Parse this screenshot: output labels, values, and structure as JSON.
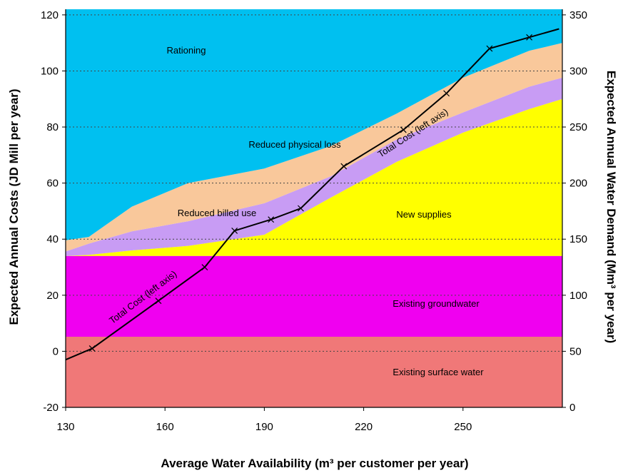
{
  "chart_data": {
    "type": "area",
    "xlabel": "Average Water Availability (m³ per customer per year)",
    "ylabel_left": "Expected Annual Costs (JD Mill per year)",
    "ylabel_right": "Expected Annual Water Demand (Mm³ per year)",
    "xlim": [
      130,
      280
    ],
    "ylim_left": [
      -20,
      122
    ],
    "ylim_right": [
      0,
      355
    ],
    "x_ticks": [
      130,
      160,
      190,
      220,
      250
    ],
    "y_ticks_left": [
      -20,
      0,
      20,
      40,
      60,
      80,
      100,
      120
    ],
    "y_ticks_right": [
      0,
      50,
      100,
      150,
      200,
      250,
      300,
      350
    ],
    "grid": "horizontal dotted",
    "stacked_regions": {
      "note_units": "right axis (Mm3 per year), cumulative upper boundaries",
      "x": [
        130,
        137,
        150,
        167,
        190,
        210,
        230,
        250,
        270,
        280
      ],
      "series": [
        {
          "name": "Existing surface water",
          "color": "#f07878",
          "top": [
            63,
            63,
            63,
            63,
            63,
            63,
            63,
            63,
            63,
            63
          ]
        },
        {
          "name": "Existing groundwater",
          "color": "#f000f0",
          "top": [
            135,
            135,
            135,
            135,
            135,
            135,
            135,
            135,
            135,
            135
          ]
        },
        {
          "name": "New supplies",
          "color": "#ffff00",
          "top": [
            135,
            136,
            140,
            144,
            154,
            187,
            219,
            245,
            266,
            275
          ]
        },
        {
          "name": "Reduced billed use",
          "color": "#c89cf4",
          "top": [
            139,
            146,
            157,
            166,
            182,
            206,
            239,
            263,
            286,
            294
          ]
        },
        {
          "name": "Reduced physical loss",
          "color": "#f9c89b",
          "top": [
            149,
            152,
            179,
            200,
            213,
            233,
            262,
            294,
            318,
            325
          ]
        },
        {
          "name": "Rationing",
          "color": "#00c0f0",
          "top": [
            355,
            355,
            355,
            355,
            355,
            355,
            355,
            355,
            355,
            355
          ]
        }
      ]
    },
    "total_cost": {
      "name": "Total Cost (left axis)",
      "axis": "left",
      "x": [
        130,
        138,
        158,
        172,
        181,
        192,
        201,
        214,
        232,
        245,
        258,
        270,
        279
      ],
      "y": [
        -3,
        1,
        18,
        30,
        43,
        47,
        51,
        66,
        79,
        92,
        108,
        112,
        115
      ]
    },
    "annotations": {
      "rationing": "Rationing",
      "reduced_physical_loss": "Reduced physical loss",
      "reduced_billed_use": "Reduced billed use",
      "new_supplies": "New supplies",
      "existing_groundwater": "Existing groundwater",
      "existing_surface_water": "Existing surface water",
      "total_cost_lower": "Total Cost (left axis)",
      "total_cost_upper": "Total Cost (left axis)"
    }
  }
}
